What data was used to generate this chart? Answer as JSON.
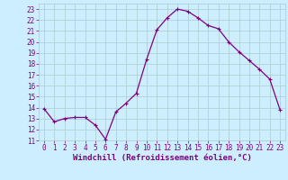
{
  "x": [
    0,
    1,
    2,
    3,
    4,
    5,
    6,
    7,
    8,
    9,
    10,
    11,
    12,
    13,
    14,
    15,
    16,
    17,
    18,
    19,
    20,
    21,
    22,
    23
  ],
  "y": [
    13.9,
    12.7,
    13.0,
    13.1,
    13.1,
    12.4,
    11.1,
    13.6,
    14.4,
    15.3,
    18.4,
    21.1,
    22.2,
    23.0,
    22.8,
    22.2,
    21.5,
    21.2,
    20.0,
    19.1,
    18.3,
    17.5,
    16.6,
    13.8
  ],
  "line_color": "#800080",
  "marker": "+",
  "marker_size": 3,
  "marker_lw": 0.8,
  "bg_color": "#cceeff",
  "grid_color": "#aacccc",
  "xlabel": "Windchill (Refroidissement éolien,°C)",
  "xlim": [
    -0.5,
    23.5
  ],
  "ylim": [
    11,
    23.5
  ],
  "yticks": [
    11,
    12,
    13,
    14,
    15,
    16,
    17,
    18,
    19,
    20,
    21,
    22,
    23
  ],
  "xticks": [
    0,
    1,
    2,
    3,
    4,
    5,
    6,
    7,
    8,
    9,
    10,
    11,
    12,
    13,
    14,
    15,
    16,
    17,
    18,
    19,
    20,
    21,
    22,
    23
  ],
  "tick_color": "#800080",
  "label_color": "#800080",
  "tick_fontsize": 5.5,
  "xlabel_fontsize": 6.5,
  "line_width": 0.9
}
